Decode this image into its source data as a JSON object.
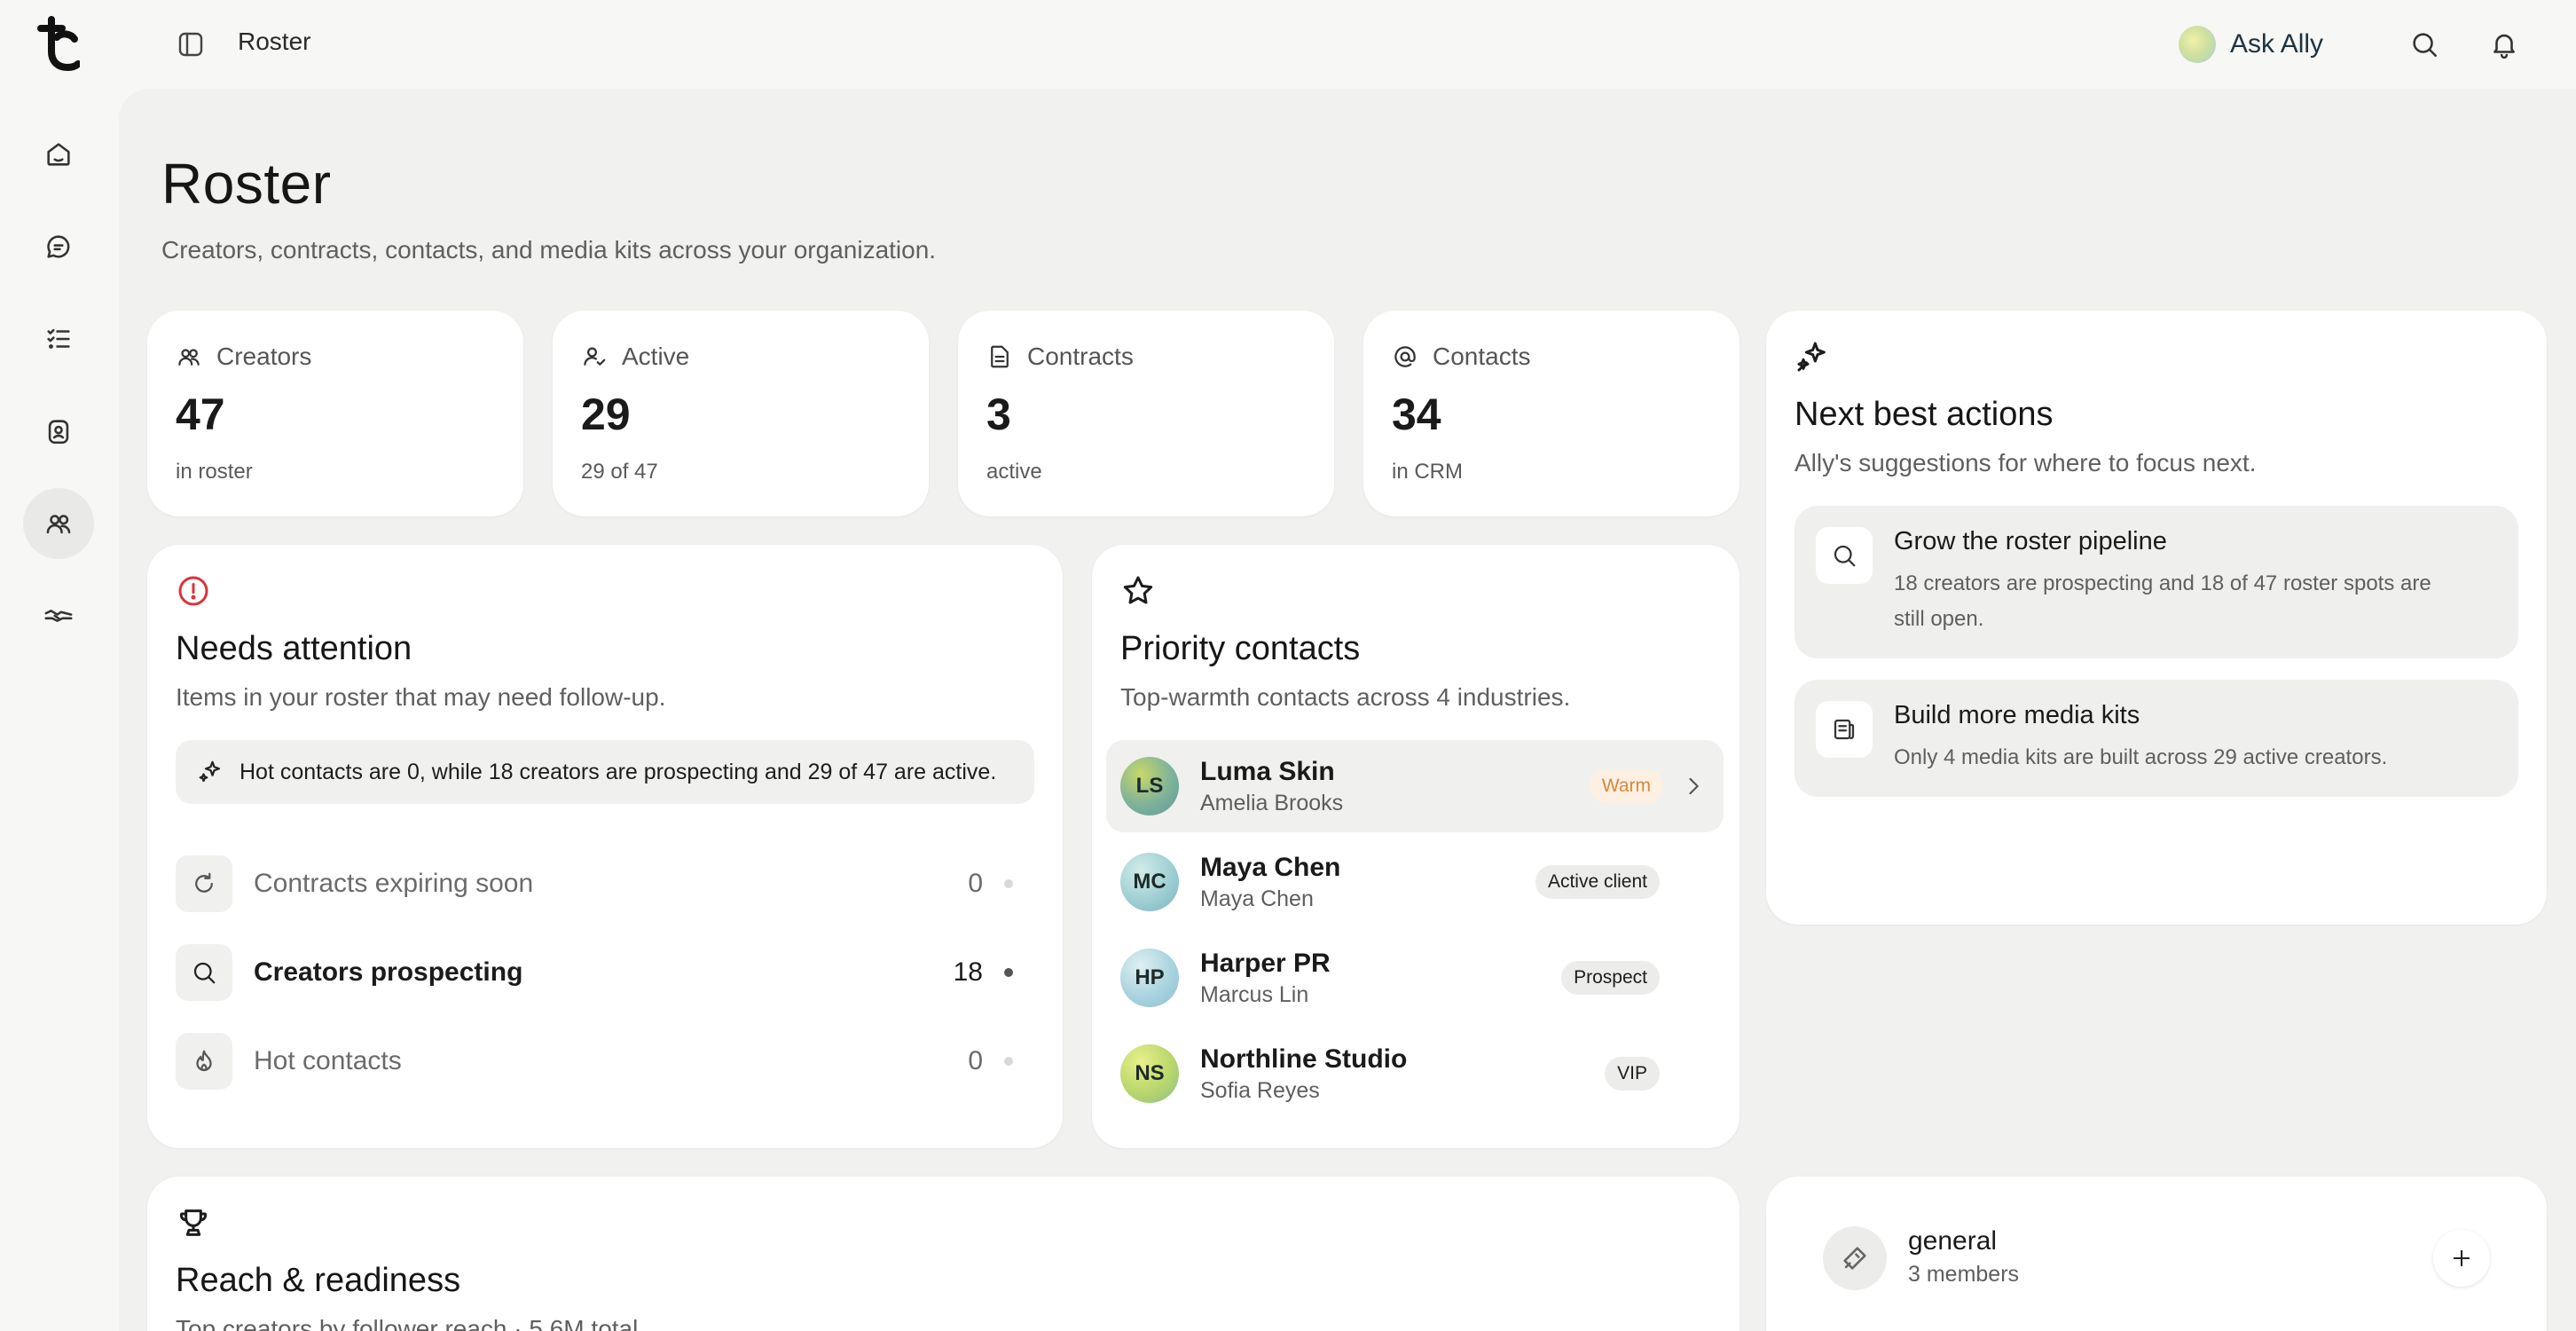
{
  "app": {
    "breadcrumb": "Roster",
    "ask_label": "Ask Ally"
  },
  "header": {
    "title": "Roster",
    "subtitle": "Creators, contracts, contacts, and media kits across your organization."
  },
  "stats": [
    {
      "label": "Creators",
      "value": "47",
      "note": "in roster",
      "icon": "users-icon"
    },
    {
      "label": "Active",
      "value": "29",
      "note": "29 of 47",
      "icon": "user-check-icon"
    },
    {
      "label": "Contracts",
      "value": "3",
      "note": "active",
      "icon": "document-icon"
    },
    {
      "label": "Contacts",
      "value": "34",
      "note": "in CRM",
      "icon": "at-sign-icon"
    }
  ],
  "needs_attention": {
    "title": "Needs attention",
    "subtitle": "Items in your roster that may need follow-up.",
    "banner": "Hot contacts are 0, while 18 creators are prospecting and 29 of 47 are active.",
    "rows": [
      {
        "label": "Contracts expiring soon",
        "count": "0"
      },
      {
        "label": "Creators prospecting",
        "count": "18"
      },
      {
        "label": "Hot contacts",
        "count": "0"
      }
    ]
  },
  "priority_contacts": {
    "title": "Priority contacts",
    "subtitle": "Top-warmth contacts across 4 industries.",
    "contacts": [
      {
        "initials": "LS",
        "name": "Luma Skin",
        "person": "Amelia Brooks",
        "tag": "Warm"
      },
      {
        "initials": "MC",
        "name": "Maya Chen",
        "person": "Maya Chen",
        "tag": "Active client"
      },
      {
        "initials": "HP",
        "name": "Harper PR",
        "person": "Marcus Lin",
        "tag": "Prospect"
      },
      {
        "initials": "NS",
        "name": "Northline Studio",
        "person": "Sofia Reyes",
        "tag": "VIP"
      }
    ]
  },
  "next_best_actions": {
    "title": "Next best actions",
    "subtitle": "Ally's suggestions for where to focus next.",
    "items": [
      {
        "title": "Grow the roster pipeline",
        "description": "18 creators are prospecting and 18 of 47 roster spots are still open.",
        "icon": "search-icon"
      },
      {
        "title": "Build more media kits",
        "description": "Only 4 media kits are built across 29 active creators.",
        "icon": "media-kit-icon"
      }
    ]
  },
  "reach": {
    "title": "Reach & readiness",
    "subtitle": "Top creators by follower reach · 5.6M total"
  },
  "channel": {
    "name": "general",
    "members": "3 members"
  },
  "colors": {
    "alert_red": "#d9343b",
    "warm_tag_text": "#d9893a",
    "warm_tag_bg": "#fdf0e3"
  }
}
